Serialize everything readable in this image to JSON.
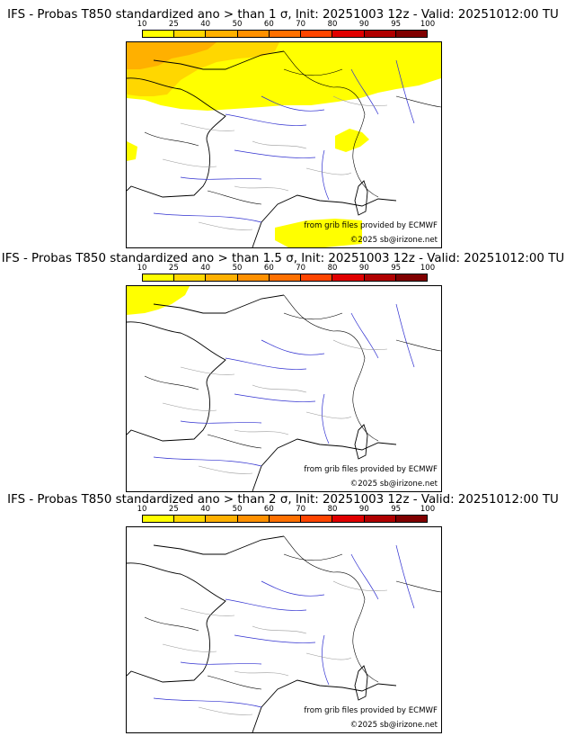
{
  "colorbar": {
    "ticks": [
      "10",
      "25",
      "40",
      "50",
      "60",
      "70",
      "80",
      "90",
      "95",
      "100"
    ],
    "colors": [
      "#ffff00",
      "#ffd700",
      "#ffb000",
      "#ff9000",
      "#ff7000",
      "#ff4500",
      "#e00000",
      "#b00000",
      "#800000"
    ]
  },
  "panels": [
    {
      "title": "IFS - Probas T850  standardized ano > than 1 σ, Init: 20251003 12z - Valid: 20251012:00 TU",
      "credit_line1": "from grib files provided by ECMWF",
      "credit_line2": "©2025 sb@irizone.net"
    },
    {
      "title": "IFS - Probas T850  standardized ano > than 1.5 σ, Init: 20251003 12z - Valid: 20251012:00 TU",
      "credit_line1": "from grib files provided by ECMWF",
      "credit_line2": "©2025 sb@irizone.net"
    },
    {
      "title": "IFS - Probas T850  standardized ano > than 2 σ, Init: 20251003 12z - Valid: 20251012:00 TU",
      "credit_line1": "from grib files provided by ECMWF",
      "credit_line2": "©2025 sb@irizone.net"
    }
  ]
}
